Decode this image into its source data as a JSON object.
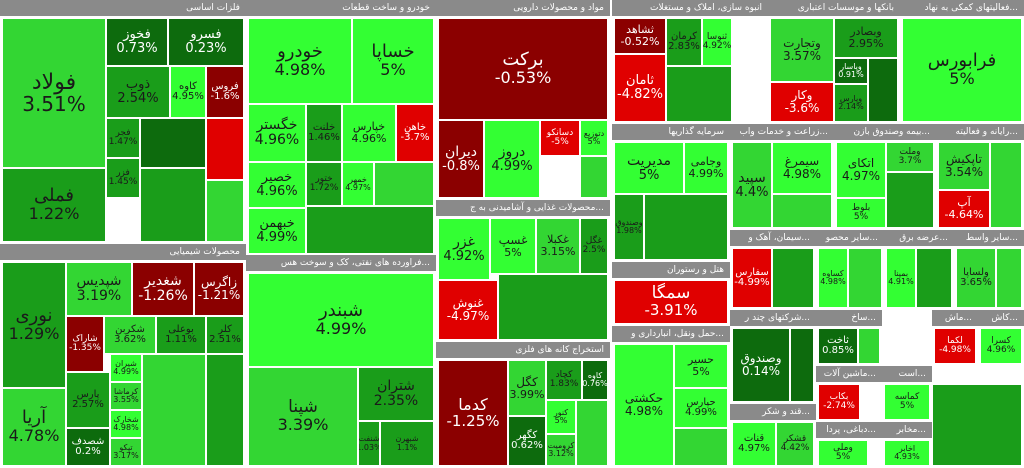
{
  "chart_data": {
    "type": "treemap",
    "value_label": "change %",
    "colors": {
      "dark_red": "#8b0000",
      "red": "#e00000",
      "dark_green": "#0d6b0d",
      "mid_green": "#1a9d1a",
      "green": "#33d633",
      "bright_green": "#33ff33"
    },
    "sectors": [
      {
        "name": "فلزات اساسی",
        "stocks": [
          {
            "name": "فولاد",
            "change": 3.51
          },
          {
            "name": "فملی",
            "change": 1.22
          },
          {
            "name": "فخوز",
            "change": 0.73
          },
          {
            "name": "فسرو",
            "change": 0.23
          },
          {
            "name": "ذوب",
            "change": 2.54
          },
          {
            "name": "کاوه",
            "change": 4.95
          },
          {
            "name": "فروس",
            "change": -1.6
          },
          {
            "name": "فجر",
            "change": 1.47
          },
          {
            "name": "فزر",
            "change": 1.45
          }
        ]
      },
      {
        "name": "محصولات شیمیایی",
        "stocks": [
          {
            "name": "نوری",
            "change": 1.29
          },
          {
            "name": "آریا",
            "change": 4.78
          },
          {
            "name": "شپدیس",
            "change": 3.19
          },
          {
            "name": "شغدیر",
            "change": -1.26
          },
          {
            "name": "زاگرس",
            "change": -1.21
          },
          {
            "name": "شاراک",
            "change": -1.35
          },
          {
            "name": "شکربن",
            "change": 3.62
          },
          {
            "name": "بوعلی",
            "change": 1.11
          },
          {
            "name": "کلر",
            "change": 2.51
          },
          {
            "name": "پارس",
            "change": 2.57
          },
          {
            "name": "شیران",
            "change": 4.99
          },
          {
            "name": "کرماشا",
            "change": 3.55
          },
          {
            "name": "شخارک",
            "change": 4.98
          },
          {
            "name": "شصدف",
            "change": 0.2
          },
          {
            "name": "تپکو",
            "change": 3.17
          }
        ]
      },
      {
        "name": "خودرو و ساخت قطعات",
        "stocks": [
          {
            "name": "خودرو",
            "change": 4.98
          },
          {
            "name": "خساپا",
            "change": 5
          },
          {
            "name": "خگستر",
            "change": 4.96
          },
          {
            "name": "خلنت",
            "change": 1.46
          },
          {
            "name": "خپارس",
            "change": 4.96
          },
          {
            "name": "خاهن",
            "change": -3.7
          },
          {
            "name": "ختور",
            "change": 1.72
          },
          {
            "name": "خمهر",
            "change": 4.97
          },
          {
            "name": "خصیر",
            "change": 4.96
          },
          {
            "name": "خبهمن",
            "change": 4.99
          }
        ]
      },
      {
        "name": "...فراورده های نفتی، کک و سوخت هس",
        "stocks": [
          {
            "name": "شبندر",
            "change": 4.99
          },
          {
            "name": "شپنا",
            "change": 3.39
          },
          {
            "name": "شتران",
            "change": 2.35
          },
          {
            "name": "شنفت",
            "change": 1.03
          },
          {
            "name": "شبهرن",
            "change": 1.1
          }
        ]
      },
      {
        "name": "مواد و محصولات دارویی",
        "stocks": [
          {
            "name": "برکت",
            "change": -0.53
          },
          {
            "name": "دیران",
            "change": -0.8
          },
          {
            "name": "دروز",
            "change": 4.99
          },
          {
            "name": "دسانکو",
            "change": -5
          },
          {
            "name": "دتوزیع",
            "change": 5
          }
        ]
      },
      {
        "name": "...محصولات غذایی و آشامیدنی به ج",
        "stocks": [
          {
            "name": "غزر",
            "change": 4.92
          },
          {
            "name": "غسپ",
            "change": 5
          },
          {
            "name": "غکبلا",
            "change": 3.15
          },
          {
            "name": "غگل",
            "change": 2.5
          },
          {
            "name": "غنوش",
            "change": -4.97
          }
        ]
      },
      {
        "name": "استخراج کانه های فلزی",
        "stocks": [
          {
            "name": "کدما",
            "change": -1.25
          },
          {
            "name": "کگل",
            "change": 3.99
          },
          {
            "name": "کچاد",
            "change": 1.83
          },
          {
            "name": "کاوه",
            "change": 0.76
          },
          {
            "name": "کگهر",
            "change": 0.62
          },
          {
            "name": "کنور",
            "change": 5
          },
          {
            "name": "کرومیت",
            "change": 3.12
          }
        ]
      },
      {
        "name": "انبوه سازی، املاک و مستغلات",
        "stocks": [
          {
            "name": "ثشاهد",
            "change": -0.52
          },
          {
            "name": "ثامان",
            "change": -4.82
          },
          {
            "name": "کرمان",
            "change": 2.83
          },
          {
            "name": "ثنوسا",
            "change": 4.92
          }
        ]
      },
      {
        "name": "بانکها و موسسات اعتباری",
        "stocks": [
          {
            "name": "وتجارت",
            "change": 3.57
          },
          {
            "name": "وکار",
            "change": -3.6
          },
          {
            "name": "وبصادر",
            "change": 2.95
          },
          {
            "name": "وپاسار",
            "change": 0.91
          },
          {
            "name": "وپارس",
            "change": 2.14
          }
        ]
      },
      {
        "name": "...فعالیتهای کمکی به نهاد",
        "stocks": [
          {
            "name": "فرابورس",
            "change": 5
          }
        ]
      },
      {
        "name": "سرمایه گذاریها",
        "stocks": [
          {
            "name": "مدیریت",
            "change": 5
          },
          {
            "name": "وجامی",
            "change": 4.99
          },
          {
            "name": "وصندوق",
            "change": 1.98
          }
        ]
      },
      {
        "name": "...زراعت و خدمات واب",
        "stocks": [
          {
            "name": "سپید",
            "change": 4.4
          },
          {
            "name": "سیمرغ",
            "change": 4.98
          }
        ]
      },
      {
        "name": "...بیمه وصندوق بازن",
        "stocks": [
          {
            "name": "اتکای",
            "change": 4.97
          },
          {
            "name": "بلوط",
            "change": 5
          },
          {
            "name": "وملت",
            "change": 3.7
          }
        ]
      },
      {
        "name": "...رایانه و فعالیته",
        "stocks": [
          {
            "name": "تاپکیش",
            "change": 3.54
          },
          {
            "name": "آپ",
            "change": -4.64
          }
        ]
      },
      {
        "name": "هتل و رستوران",
        "stocks": [
          {
            "name": "سمگا",
            "change": -3.91
          }
        ]
      },
      {
        "name": "...سیمان، آهک و",
        "stocks": [
          {
            "name": "سفارس",
            "change": -4.99
          }
        ]
      },
      {
        "name": "...سایر محصو",
        "stocks": [
          {
            "name": "کساوه",
            "change": 4.98
          }
        ]
      },
      {
        "name": "...عرضه برق",
        "stocks": [
          {
            "name": "بمپنا",
            "change": 4.91
          }
        ]
      },
      {
        "name": "...سایر واسط",
        "stocks": [
          {
            "name": "ولساپا",
            "change": 3.65
          }
        ]
      },
      {
        "name": "...شرکتهای چند ر",
        "stocks": [
          {
            "name": "وصندوق",
            "change": 0.14
          }
        ]
      },
      {
        "name": "...حمل ونقل، انبارداری و",
        "stocks": [
          {
            "name": "حکشتی",
            "change": 4.98
          },
          {
            "name": "حسیر",
            "change": 5
          },
          {
            "name": "حپارس",
            "change": 4.99
          }
        ]
      },
      {
        "name": "...ساخ",
        "stocks": [
          {
            "name": "ثاخت",
            "change": 0.85
          }
        ]
      },
      {
        "name": "...ماش",
        "stocks": [
          {
            "name": "لکما",
            "change": -4.98
          }
        ]
      },
      {
        "name": "...کاش",
        "stocks": [
          {
            "name": "کسرا",
            "change": 4.96
          }
        ]
      },
      {
        "name": "...ماشین آلات",
        "stocks": [
          {
            "name": "بکاب",
            "change": -2.74
          }
        ]
      },
      {
        "name": "...است",
        "stocks": [
          {
            "name": "کماسه",
            "change": 5
          }
        ]
      },
      {
        "name": "...قند و شکر",
        "stocks": [
          {
            "name": "قنات",
            "change": 4.97
          },
          {
            "name": "قشکر",
            "change": 4.42
          }
        ]
      },
      {
        "name": "...دباغی، پردا",
        "stocks": [
          {
            "name": "وملی",
            "change": 5
          }
        ]
      },
      {
        "name": "...مخابر",
        "stocks": [
          {
            "name": "اخابر",
            "change": 4.93
          }
        ]
      }
    ]
  }
}
